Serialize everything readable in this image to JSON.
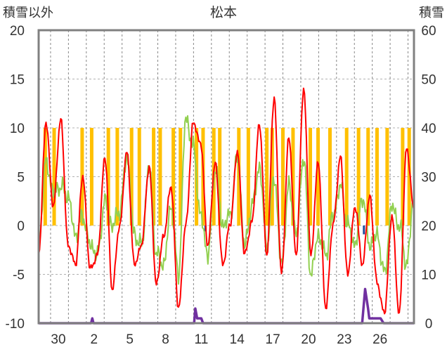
{
  "chart_data": {
    "type": "line",
    "title": "松本",
    "ylabel_left": "積雪以外",
    "ylabel_right": "積雪",
    "ylim_left": [
      -10,
      20
    ],
    "ylim_right": [
      0,
      60
    ],
    "yticks_left": [
      "20",
      "15",
      "10",
      "5",
      "0",
      "-5",
      "-10"
    ],
    "yticks_right": [
      "60",
      "50",
      "40",
      "30",
      "20",
      "10",
      "0"
    ],
    "x_tick_labels": [
      "30",
      "2",
      "5",
      "8",
      "11",
      "14",
      "17",
      "20",
      "23",
      "26"
    ],
    "grid": true,
    "colors": {
      "temperature": "#ff0000",
      "dew_point": "#92d050",
      "sunshine_bars": "#ffc000",
      "precip_bars": "#1f4e9c",
      "snow_depth": "#7030a0",
      "axis_frame": "#808080"
    },
    "series": [
      {
        "key": "temperature",
        "axis": "left",
        "daily_values": [
          -3.0,
          10.5,
          2.0,
          11.0,
          -2.0,
          -4.0,
          5.0,
          -4.5,
          -3.0,
          7.0,
          -6.5,
          0.0,
          7.5,
          -4.0,
          -2.0,
          6.0,
          -6.0,
          -1.0,
          4.0,
          -8.5,
          0.0,
          10.5,
          8.5,
          -2.0,
          6.5,
          -4.0,
          0.0,
          7.5,
          -3.0,
          0.5,
          10.5,
          -3.0,
          13.0,
          -5.0,
          9.0,
          -3.0,
          14.0,
          -3.0,
          6.5,
          -8.5,
          0.0,
          7.0,
          -5.0,
          2.0,
          -4.0,
          3.0,
          -6.0,
          -9.0,
          1.0,
          -9.0,
          8.0,
          1.5
        ]
      },
      {
        "key": "dew_point",
        "axis": "left",
        "daily_values": [
          -1.5,
          6.5,
          3.5,
          4.0,
          3.0,
          -1.0,
          1.0,
          -2.0,
          -3.0,
          2.5,
          0.0,
          1.5,
          7.0,
          -1.0,
          -2.0,
          6.0,
          -3.0,
          -4.0,
          2.0,
          -5.0,
          11.0,
          8.0,
          1.0,
          -3.0,
          6.0,
          0.0,
          1.0,
          7.0,
          -2.0,
          2.0,
          6.0,
          -2.0,
          5.0,
          -4.0,
          4.0,
          -1.0,
          7.0,
          -5.0,
          -1.0,
          -3.0,
          1.0,
          4.0,
          0.0,
          -2.0,
          3.0,
          -2.0,
          -1.0,
          -5.0,
          2.0,
          0.0,
          -4.0,
          3.0
        ]
      },
      {
        "key": "snow_depth",
        "axis": "right",
        "points": [
          [
            0,
            0
          ],
          [
            8.8,
            0
          ],
          [
            9.0,
            1
          ],
          [
            9.2,
            0
          ],
          [
            26.1,
            0
          ],
          [
            26.3,
            3
          ],
          [
            26.6,
            1
          ],
          [
            27.3,
            1
          ],
          [
            27.6,
            0
          ],
          [
            54.3,
            0
          ],
          [
            54.8,
            7
          ],
          [
            55.3,
            3
          ],
          [
            55.5,
            1
          ],
          [
            57.4,
            1
          ],
          [
            57.9,
            0
          ],
          [
            63,
            0
          ]
        ]
      }
    ],
    "bar_series": [
      {
        "key": "sunshine_bars",
        "axis": "right",
        "positions": [
          1.1,
          2.6,
          7.3,
          8.9,
          11.7,
          13.2,
          15.6,
          16.9,
          19.3,
          20.4,
          22.6,
          23.8,
          26.5,
          27.6,
          29.4,
          30.4,
          33.6,
          35.2,
          38.3,
          39.2,
          41.0,
          42.7,
          45.6,
          46.9,
          48.9,
          51.7,
          53.7,
          55.3,
          56.8,
          58.5,
          61.1,
          62.2
        ],
        "values": [
          40,
          40,
          40,
          40,
          40,
          40,
          40,
          40,
          40,
          40,
          40,
          40,
          40,
          40,
          40,
          40,
          40,
          40,
          40,
          40,
          40,
          40,
          40,
          40,
          40,
          40,
          40,
          40,
          40,
          40,
          40,
          40
        ]
      },
      {
        "key": "precip_bars",
        "axis": "left",
        "positions": [
          28.0,
          54.6
        ],
        "values": [
          -0.6,
          -0.9
        ]
      }
    ]
  }
}
